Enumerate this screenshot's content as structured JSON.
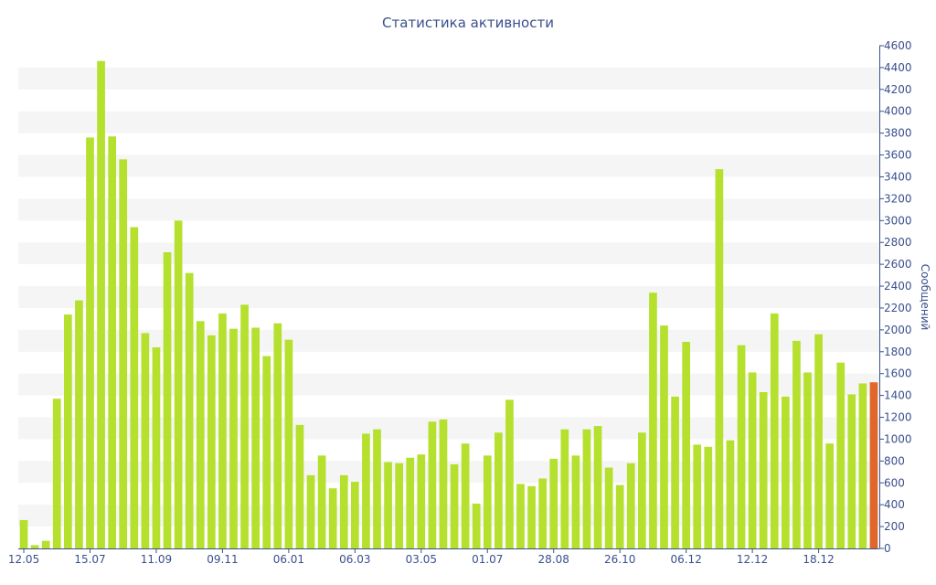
{
  "chart_data": {
    "type": "bar",
    "title": "Статистика активности",
    "ylabel": "Сообщений",
    "xlabel": "",
    "ylim": [
      0,
      4600
    ],
    "yticks": [
      0,
      200,
      400,
      600,
      800,
      1000,
      1200,
      1400,
      1600,
      1800,
      2000,
      2200,
      2400,
      2600,
      2800,
      3000,
      3200,
      3400,
      3600,
      3800,
      4000,
      4200,
      4400,
      4600
    ],
    "xtick_labels": [
      {
        "label": "12.05",
        "index": 0
      },
      {
        "label": "15.07",
        "index": 6
      },
      {
        "label": "11.09",
        "index": 12
      },
      {
        "label": "09.11",
        "index": 18
      },
      {
        "label": "06.01",
        "index": 24
      },
      {
        "label": "06.03",
        "index": 30
      },
      {
        "label": "03.05",
        "index": 36
      },
      {
        "label": "01.07",
        "index": 42
      },
      {
        "label": "28.08",
        "index": 48
      },
      {
        "label": "26.10",
        "index": 54
      },
      {
        "label": "06.12",
        "index": 60
      },
      {
        "label": "12.12",
        "index": 66
      },
      {
        "label": "18.12",
        "index": 72
      }
    ],
    "values": [
      260,
      30,
      70,
      1370,
      2140,
      2270,
      3760,
      4460,
      3770,
      3560,
      2940,
      1970,
      1840,
      2710,
      3000,
      2520,
      2080,
      1950,
      2150,
      2010,
      2230,
      2020,
      1760,
      2060,
      1910,
      1130,
      670,
      850,
      550,
      670,
      610,
      1050,
      1090,
      790,
      780,
      830,
      860,
      1160,
      1180,
      770,
      960,
      410,
      850,
      1060,
      1360,
      590,
      570,
      640,
      820,
      1090,
      850,
      1090,
      1120,
      740,
      580,
      780,
      1060,
      2340,
      2040,
      1390,
      1890,
      950,
      930,
      3470,
      990,
      1860,
      1610,
      1430,
      2150,
      1390,
      1900,
      1610,
      1960,
      960,
      1700,
      1410,
      1510,
      1520
    ],
    "highlight_last": true,
    "colors": {
      "bar": "#b5e02e",
      "bar_highlight": "#e0662a",
      "band": "#f5f5f5",
      "axis": "#3a4f8c",
      "text": "#3a4f8c"
    },
    "grid": "alternating-bands",
    "y_axis_side": "right"
  }
}
